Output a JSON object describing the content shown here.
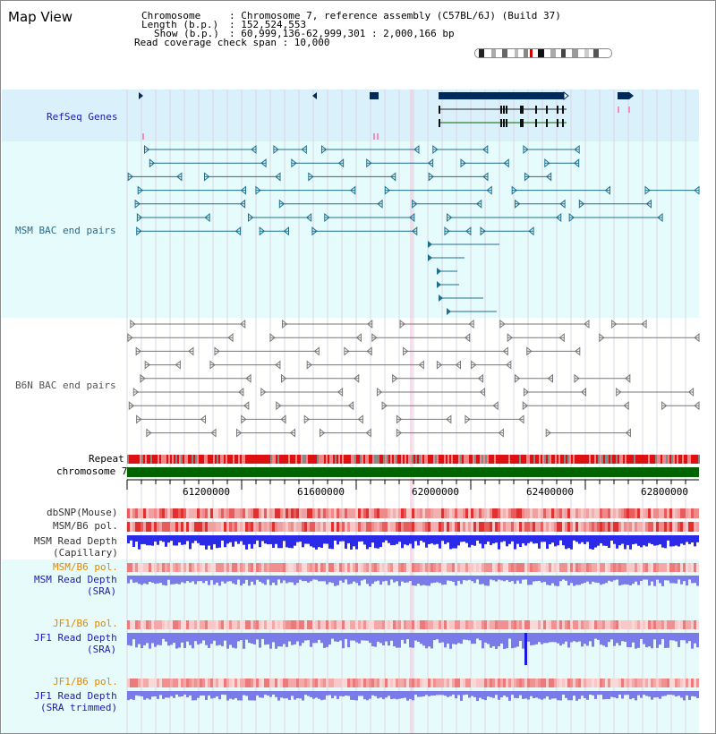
{
  "page": {
    "title": "Map View"
  },
  "info": {
    "chromosome_key": "Chromosome",
    "chromosome_val": ": Chromosome 7, reference assembly (C57BL/6J) (Build 37)",
    "length_key": "Length (b.p.)",
    "length_val": ": 152,524,553",
    "show_key": "Show (b.p.)",
    "show_val": ": 60,999,136-62,999,301 : 2,000,166 bp",
    "coverage_line": "Read coverage check span : 10,000"
  },
  "tracks": {
    "refseq": "RefSeq Genes",
    "msm_bac": "MSM BAC end pairs",
    "b6n_bac": "B6N BAC end pairs",
    "repeat": "Repeat",
    "chromosome": "chromosome 7",
    "dbsnp": "dbSNP(Mouse)",
    "msm_b6_pol_1": "MSM/B6 pol.",
    "msm_read_depth_1": "MSM Read Depth",
    "msm_read_depth_1b": "(Capillary)",
    "msm_b6_pol_2": "MSM/B6 pol.",
    "msm_read_depth_2": "MSM Read Depth",
    "msm_read_depth_2b": "(SRA)",
    "jf1_b6_pol_1": "JF1/B6 pol.",
    "jf1_read_depth_1": "JF1 Read Depth",
    "jf1_read_depth_1b": "(SRA)",
    "jf1_b6_pol_2": "JF1/B6 pol.",
    "jf1_read_depth_2": "JF1 Read Depth",
    "jf1_read_depth_2b": "(SRA trimmed)"
  },
  "axis": {
    "ticks": [
      "61200000",
      "61600000",
      "62000000",
      "62400000",
      "62800000"
    ]
  },
  "colors": {
    "refseq_label": "#1a1ab0",
    "msm_label": "#2a6a8a",
    "b6n_label": "#555555",
    "orange_label": "#e08800",
    "blue_label": "#1a1ab0",
    "gene": "#002a5c",
    "msm_pair": "#1f6f8f",
    "b6n_pair": "#777777",
    "depth_blue": "#2a2ae8",
    "depth_light": "#7a7ae8",
    "chromosome_bar": "#006400",
    "repeat_red": "#dd1111"
  }
}
